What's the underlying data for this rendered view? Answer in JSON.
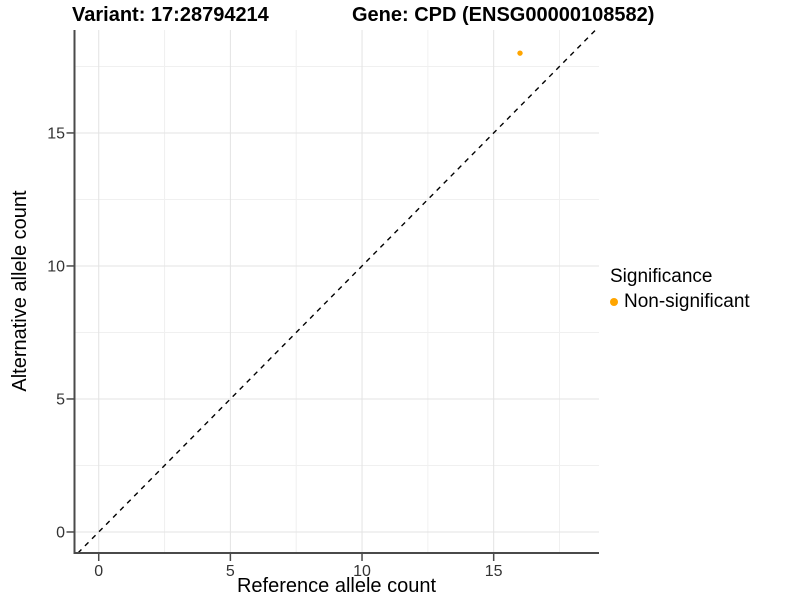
{
  "header": {
    "title_left": "Variant: 17:28794214",
    "title_right": "Gene: CPD (ENSG00000108582)"
  },
  "chart_data": {
    "type": "scatter",
    "title": "Variant: 17:28794214 / Gene: CPD (ENSG00000108582)",
    "xlabel": "Reference allele count",
    "ylabel": "Alternative allele count",
    "xlim": [
      -0.92,
      19.0
    ],
    "ylim": [
      -0.79,
      18.87
    ],
    "x_ticks": [
      0,
      5,
      10,
      15
    ],
    "y_ticks": [
      0,
      5,
      10,
      15
    ],
    "x_minor_gridlines": [
      2.5,
      7.5,
      12.5,
      17.5
    ],
    "y_minor_gridlines": [
      2.5,
      7.5,
      12.5,
      17.5
    ],
    "grid": true,
    "legend_position": "right",
    "series": [
      {
        "name": "Non-significant",
        "color": "#FFA500",
        "points": [
          {
            "x": 16,
            "y": 18
          }
        ]
      }
    ],
    "reference_line": {
      "slope": 1,
      "intercept": 0,
      "style": "dashed",
      "color": "#000000"
    },
    "legend": {
      "title": "Significance",
      "entries": [
        {
          "label": "Non-significant",
          "color": "#FFA500"
        }
      ]
    }
  },
  "colors": {
    "background": "#ffffff",
    "grid_major": "#e3e3e3",
    "grid_minor": "#f0f0f0",
    "axis_line": "#4a4a4a",
    "tick_label": "#333333",
    "point": "#FFA500"
  }
}
